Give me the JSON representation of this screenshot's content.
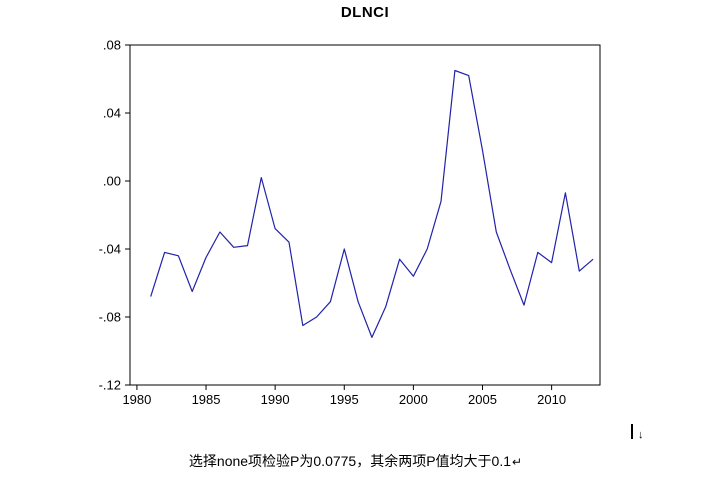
{
  "page": {
    "title": "DLNCI",
    "caption": "选择none项检验P为0.0775，其余两项P值均大于0.1",
    "line_break_mark": "↵",
    "cursor_mark": "↓"
  },
  "chart_data": {
    "type": "line",
    "title": "DLNCI",
    "xlabel": "",
    "ylabel": "",
    "xlim": [
      1979.5,
      2013.5
    ],
    "ylim": [
      -0.12,
      0.08
    ],
    "grid": false,
    "legend": "none",
    "line_color": "#2222aa",
    "x": [
      1981,
      1982,
      1983,
      1984,
      1985,
      1986,
      1987,
      1988,
      1989,
      1990,
      1991,
      1992,
      1993,
      1994,
      1995,
      1996,
      1997,
      1998,
      1999,
      2000,
      2001,
      2002,
      2003,
      2004,
      2005,
      2006,
      2007,
      2008,
      2009,
      2010,
      2011,
      2012,
      2013
    ],
    "series": [
      {
        "name": "DLNCI",
        "values": [
          -0.068,
          -0.042,
          -0.044,
          -0.065,
          -0.045,
          -0.03,
          -0.039,
          -0.038,
          0.002,
          -0.028,
          -0.036,
          -0.085,
          -0.08,
          -0.071,
          -0.04,
          -0.071,
          -0.092,
          -0.074,
          -0.046,
          -0.056,
          -0.04,
          -0.012,
          0.065,
          0.062,
          0.018,
          -0.03,
          -0.052,
          -0.073,
          -0.042,
          -0.048,
          -0.007,
          -0.053,
          -0.046
        ]
      }
    ],
    "x_ticks": [
      {
        "value": 1980,
        "label": "1980"
      },
      {
        "value": 1985,
        "label": "1985"
      },
      {
        "value": 1990,
        "label": "1990"
      },
      {
        "value": 1995,
        "label": "1995"
      },
      {
        "value": 2000,
        "label": "2000"
      },
      {
        "value": 2005,
        "label": "2005"
      },
      {
        "value": 2010,
        "label": "2010"
      }
    ],
    "y_ticks": [
      {
        "value": 0.08,
        "label": ".08"
      },
      {
        "value": 0.04,
        "label": ".04"
      },
      {
        "value": 0.0,
        "label": ".00"
      },
      {
        "value": -0.04,
        "label": "-.04"
      },
      {
        "value": -0.08,
        "label": "-.08"
      },
      {
        "value": -0.12,
        "label": "-.12"
      }
    ]
  }
}
